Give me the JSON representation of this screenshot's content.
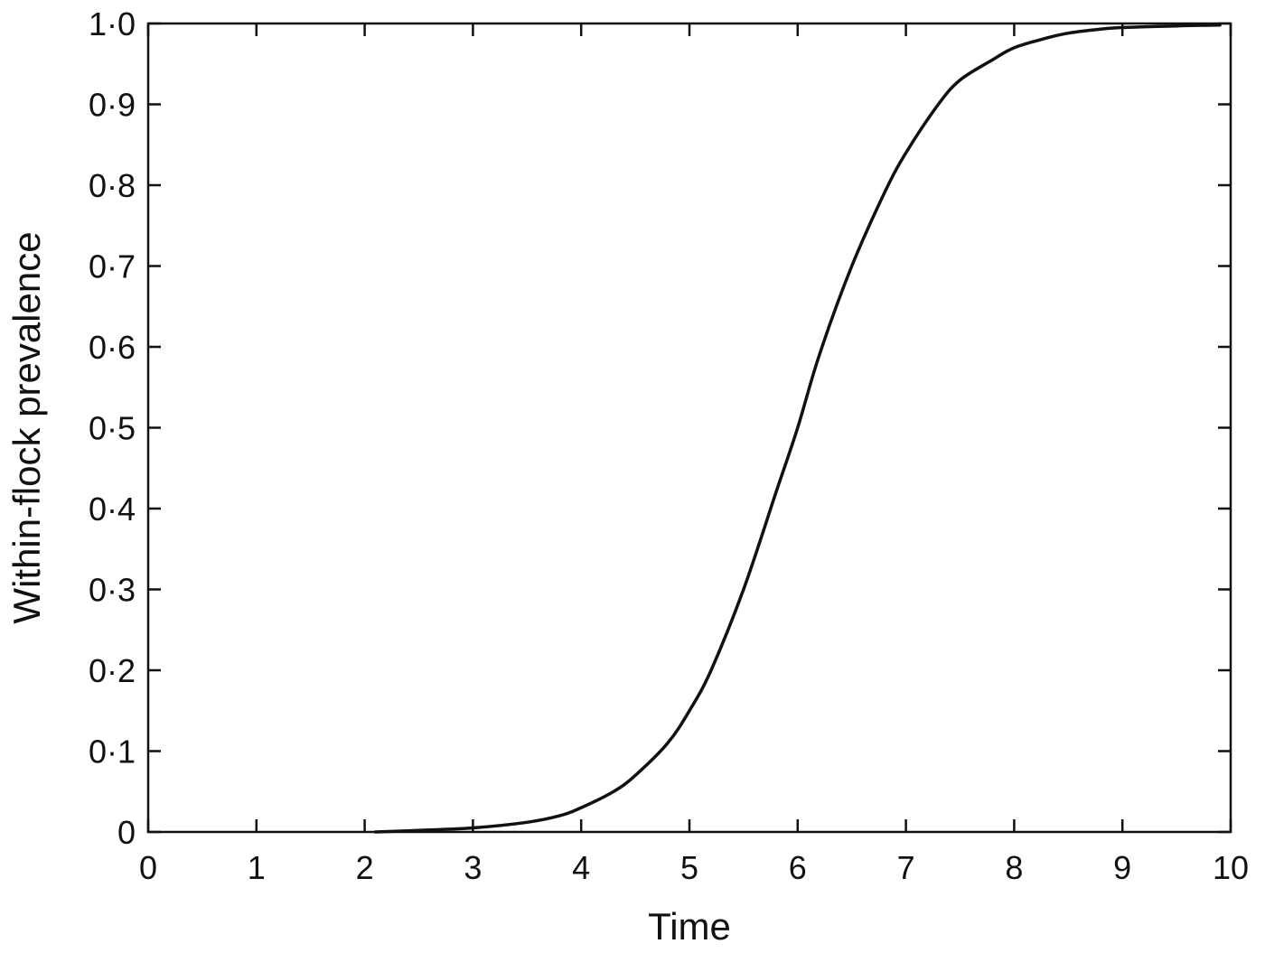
{
  "chart_data": {
    "type": "line",
    "title": "",
    "xlabel": "Time",
    "ylabel": "Within-flock prevalence",
    "xlim": [
      0,
      10
    ],
    "ylim": [
      0,
      1
    ],
    "grid": false,
    "legend": "none",
    "line_color": "#111111",
    "x_ticks": [
      "0",
      "1",
      "2",
      "3",
      "4",
      "5",
      "6",
      "7",
      "8",
      "9",
      "10"
    ],
    "y_ticks": [
      "0",
      "0·1",
      "0·2",
      "0·3",
      "0·4",
      "0·5",
      "0·6",
      "0·7",
      "0·8",
      "0·9",
      "1·0"
    ],
    "series": [
      {
        "x": [
          2.1,
          2.5,
          3.0,
          3.5,
          3.8,
          4.0,
          4.3,
          4.5,
          4.8,
          5.0,
          5.2,
          5.5,
          5.8,
          6.0,
          6.2,
          6.5,
          6.8,
          7.0,
          7.3,
          7.5,
          7.8,
          8.0,
          8.3,
          8.5,
          8.8,
          9.0,
          9.5,
          9.9
        ],
        "y": [
          0.0,
          0.002,
          0.005,
          0.012,
          0.02,
          0.03,
          0.05,
          0.07,
          0.11,
          0.15,
          0.2,
          0.3,
          0.42,
          0.5,
          0.59,
          0.7,
          0.79,
          0.84,
          0.9,
          0.93,
          0.955,
          0.97,
          0.982,
          0.988,
          0.993,
          0.995,
          0.997,
          0.998
        ]
      }
    ]
  }
}
